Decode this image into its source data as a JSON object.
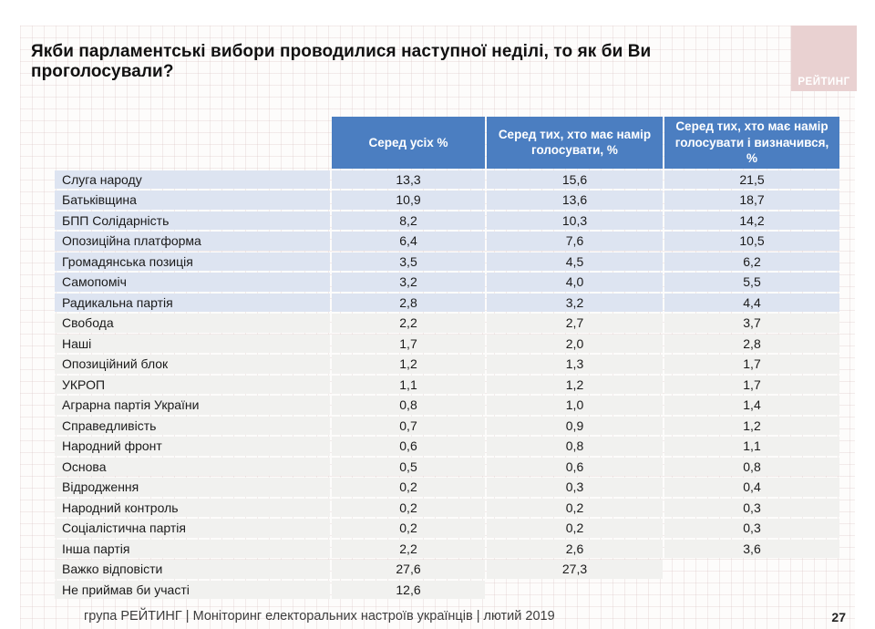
{
  "title": "Якби парламентські вибори проводилися наступної неділі, то як би Ви проголосували?",
  "logo": {
    "label": "РЕЙТИНГ"
  },
  "table": {
    "headers": [
      "Серед усіх %",
      "Серед тих, хто має намір голосувати, %",
      "Серед тих, хто має намір голосувати і визначився, %"
    ],
    "rows": [
      {
        "name": "Слуга народу",
        "all": "13,3",
        "intend": "15,6",
        "decided": "21,5"
      },
      {
        "name": "Батьківщина",
        "all": "10,9",
        "intend": "13,6",
        "decided": "18,7"
      },
      {
        "name": "БПП Солідарність",
        "all": "8,2",
        "intend": "10,3",
        "decided": "14,2"
      },
      {
        "name": "Опозиційна платформа",
        "all": "6,4",
        "intend": "7,6",
        "decided": "10,5"
      },
      {
        "name": "Громадянська позиція",
        "all": "3,5",
        "intend": "4,5",
        "decided": "6,2"
      },
      {
        "name": "Самопоміч",
        "all": "3,2",
        "intend": "4,0",
        "decided": "5,5"
      },
      {
        "name": "Радикальна партія",
        "all": "2,8",
        "intend": "3,2",
        "decided": "4,4"
      },
      {
        "name": "Свобода",
        "all": "2,2",
        "intend": "2,7",
        "decided": "3,7"
      },
      {
        "name": "Наші",
        "all": "1,7",
        "intend": "2,0",
        "decided": "2,8"
      },
      {
        "name": "Опозиційний блок",
        "all": "1,2",
        "intend": "1,3",
        "decided": "1,7"
      },
      {
        "name": "УКРОП",
        "all": "1,1",
        "intend": "1,2",
        "decided": "1,7"
      },
      {
        "name": "Аграрна партія України",
        "all": "0,8",
        "intend": "1,0",
        "decided": "1,4"
      },
      {
        "name": "Справедливість",
        "all": "0,7",
        "intend": "0,9",
        "decided": "1,2"
      },
      {
        "name": "Народний фронт",
        "all": "0,6",
        "intend": "0,8",
        "decided": "1,1"
      },
      {
        "name": "Основа",
        "all": "0,5",
        "intend": "0,6",
        "decided": "0,8"
      },
      {
        "name": "Відродження",
        "all": "0,2",
        "intend": "0,3",
        "decided": "0,4"
      },
      {
        "name": "Народний контроль",
        "all": "0,2",
        "intend": "0,2",
        "decided": "0,3"
      },
      {
        "name": "Соціалістична партія",
        "all": "0,2",
        "intend": "0,2",
        "decided": "0,3"
      },
      {
        "name": "Інша партія",
        "all": "2,2",
        "intend": "2,6",
        "decided": "3,6"
      },
      {
        "name": "Важко відповісти",
        "all": "27,6",
        "intend": "27,3",
        "decided": ""
      },
      {
        "name": "Не приймав би участі",
        "all": "12,6",
        "intend": "",
        "decided": ""
      }
    ]
  },
  "footer": {
    "source": "група РЕЙТИНГ |  Моніторинг електоральних настроїв українців | лютий  2019",
    "page": "27"
  },
  "colors": {
    "header_bg": "#4b7ec1",
    "band_blue": "#dde4f1",
    "band_gray": "#f1f1ef",
    "logo_bg": "#e9d1d1",
    "grid_line": "#e7d6d6"
  }
}
